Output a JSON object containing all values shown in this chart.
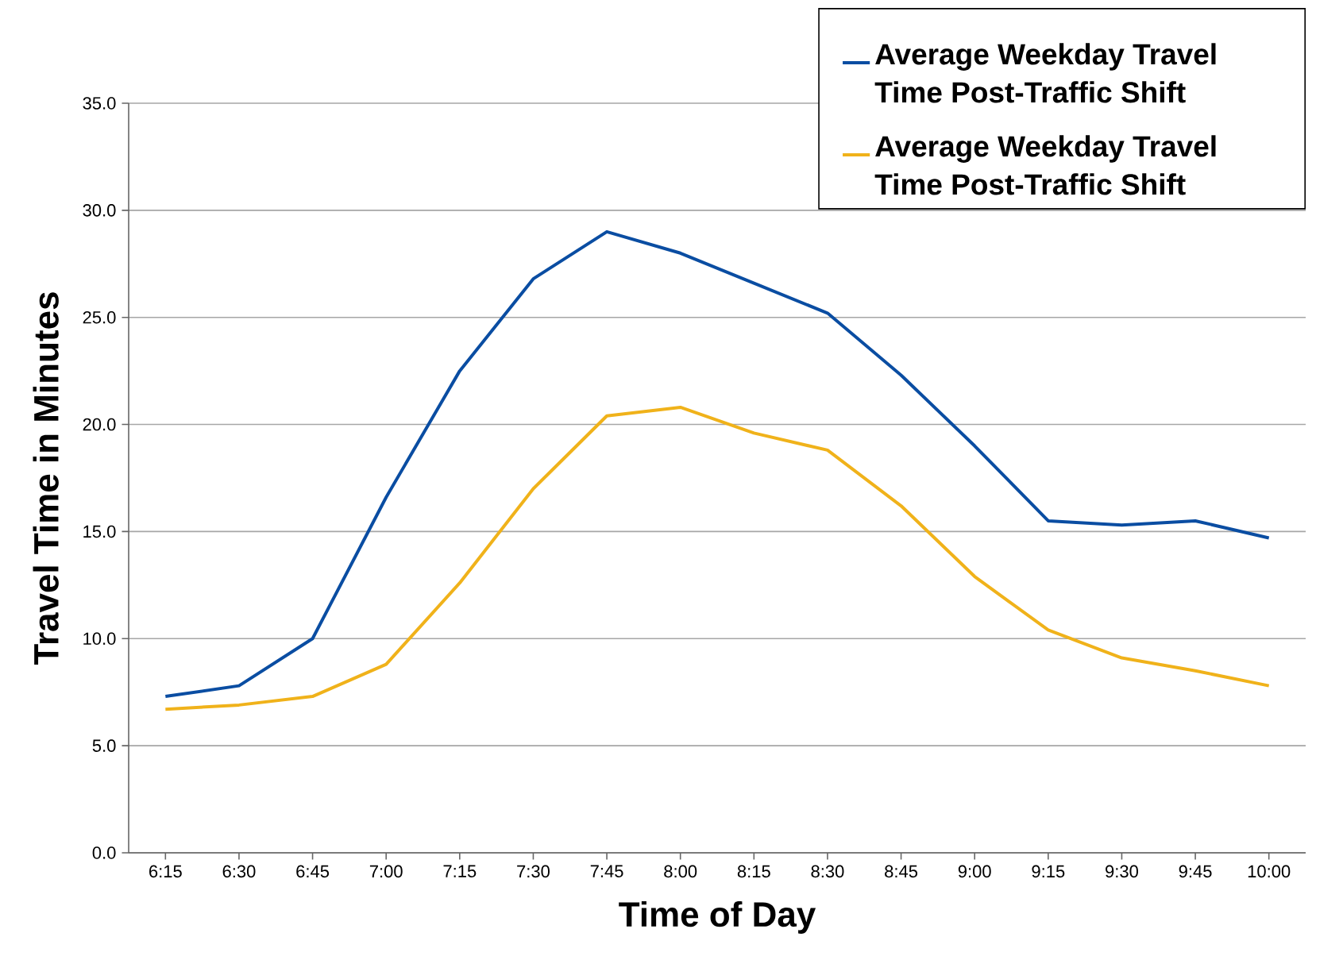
{
  "chart_data": {
    "type": "line",
    "xlabel": "Time of Day",
    "ylabel": "Travel Time in Minutes",
    "categories": [
      "6:15",
      "6:30",
      "6:45",
      "7:00",
      "7:15",
      "7:30",
      "7:45",
      "8:00",
      "8:15",
      "8:30",
      "8:45",
      "9:00",
      "9:15",
      "9:30",
      "9:45",
      "10:00"
    ],
    "series": [
      {
        "name": "Average Weekday Travel Time Post-Traffic Shift",
        "color": "#0a4da2",
        "values": [
          7.3,
          7.8,
          10.0,
          16.6,
          22.5,
          26.8,
          29.0,
          28.0,
          26.6,
          25.2,
          22.3,
          19.0,
          15.5,
          15.3,
          15.5,
          14.7
        ]
      },
      {
        "name": "Average Weekday Travel Time Post-Traffic Shift",
        "color": "#f0b21a",
        "values": [
          6.7,
          6.9,
          7.3,
          8.8,
          12.6,
          17.0,
          20.4,
          20.8,
          19.6,
          18.8,
          16.2,
          12.9,
          10.4,
          9.1,
          8.5,
          7.8
        ]
      }
    ],
    "ylim": [
      0,
      35
    ],
    "yticks": [
      {
        "value": 0,
        "label": "0.0"
      },
      {
        "value": 5,
        "label": "5.0"
      },
      {
        "value": 10,
        "label": "10.0"
      },
      {
        "value": 15,
        "label": "15.0"
      },
      {
        "value": 20,
        "label": "20.0"
      },
      {
        "value": 25,
        "label": "25.0"
      },
      {
        "value": 30,
        "label": "30.0"
      },
      {
        "value": 35,
        "label": "35.0"
      }
    ],
    "grid": "y",
    "legend": "top right",
    "marker": "none",
    "line_style": "solid"
  }
}
